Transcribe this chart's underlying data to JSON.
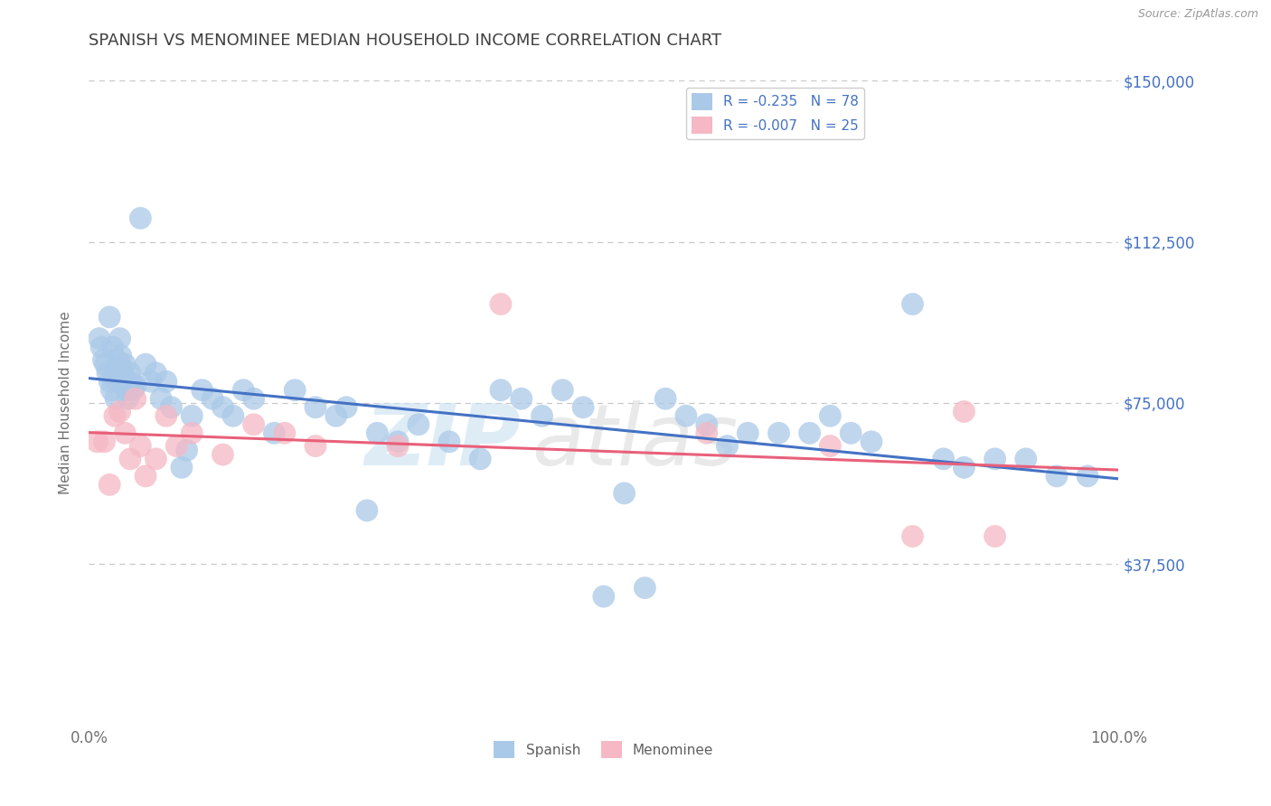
{
  "title": "SPANISH VS MENOMINEE MEDIAN HOUSEHOLD INCOME CORRELATION CHART",
  "source_text": "Source: ZipAtlas.com",
  "ylabel": "Median Household Income",
  "xlim": [
    0,
    100
  ],
  "ylim": [
    0,
    150000
  ],
  "yticks": [
    0,
    37500,
    75000,
    112500,
    150000
  ],
  "ytick_labels": [
    "",
    "$37,500",
    "$75,000",
    "$112,500",
    "$150,000"
  ],
  "xticks": [
    0,
    100
  ],
  "xtick_labels": [
    "0.0%",
    "100.0%"
  ],
  "background_color": "#ffffff",
  "grid_color": "#c8c8c8",
  "title_color": "#404040",
  "title_fontsize": 13,
  "axis_label_color": "#707070",
  "watermark_zip": "ZIP",
  "watermark_atlas": "atlas",
  "series": [
    {
      "name": "Spanish",
      "R": -0.235,
      "N": 78,
      "dot_color": "#aac9e8",
      "line_color": "#4472c4",
      "legend_color": "#aac9e8",
      "x": [
        1.0,
        1.2,
        1.4,
        1.6,
        1.8,
        2.0,
        2.0,
        2.2,
        2.3,
        2.5,
        2.6,
        2.7,
        2.8,
        3.0,
        3.1,
        3.2,
        3.3,
        3.4,
        3.5,
        3.6,
        3.7,
        3.8,
        4.0,
        4.1,
        4.3,
        4.5,
        5.0,
        5.5,
        6.0,
        6.5,
        7.0,
        7.5,
        8.0,
        9.0,
        9.5,
        10.0,
        11.0,
        12.0,
        13.0,
        14.0,
        15.0,
        16.0,
        18.0,
        20.0,
        22.0,
        24.0,
        25.0,
        27.0,
        28.0,
        30.0,
        32.0,
        35.0,
        38.0,
        40.0,
        42.0,
        44.0,
        46.0,
        48.0,
        50.0,
        52.0,
        54.0,
        56.0,
        58.0,
        60.0,
        62.0,
        64.0,
        67.0,
        70.0,
        72.0,
        74.0,
        76.0,
        80.0,
        83.0,
        85.0,
        88.0,
        91.0,
        94.0,
        97.0
      ],
      "y": [
        90000,
        88000,
        85000,
        84000,
        82000,
        80000,
        95000,
        78000,
        88000,
        82000,
        76000,
        85000,
        80000,
        90000,
        86000,
        83000,
        82000,
        79000,
        84000,
        80000,
        78000,
        76000,
        82000,
        80000,
        78000,
        79000,
        118000,
        84000,
        80000,
        82000,
        76000,
        80000,
        74000,
        60000,
        64000,
        72000,
        78000,
        76000,
        74000,
        72000,
        78000,
        76000,
        68000,
        78000,
        74000,
        72000,
        74000,
        50000,
        68000,
        66000,
        70000,
        66000,
        62000,
        78000,
        76000,
        72000,
        78000,
        74000,
        30000,
        54000,
        32000,
        76000,
        72000,
        70000,
        65000,
        68000,
        68000,
        68000,
        72000,
        68000,
        66000,
        98000,
        62000,
        60000,
        62000,
        62000,
        58000,
        58000
      ]
    },
    {
      "name": "Menominee",
      "R": -0.007,
      "N": 25,
      "dot_color": "#f5b8c4",
      "line_color": "#e8607a",
      "legend_color": "#f5b8c4",
      "x": [
        0.8,
        1.5,
        2.0,
        2.5,
        3.0,
        3.5,
        4.0,
        4.5,
        5.0,
        5.5,
        6.5,
        7.5,
        8.5,
        10.0,
        13.0,
        16.0,
        19.0,
        22.0,
        30.0,
        40.0,
        60.0,
        72.0,
        80.0,
        85.0,
        88.0
      ],
      "y": [
        66000,
        66000,
        56000,
        72000,
        73000,
        68000,
        62000,
        76000,
        65000,
        58000,
        62000,
        72000,
        65000,
        68000,
        63000,
        70000,
        68000,
        65000,
        65000,
        98000,
        68000,
        65000,
        44000,
        73000,
        44000
      ]
    }
  ]
}
